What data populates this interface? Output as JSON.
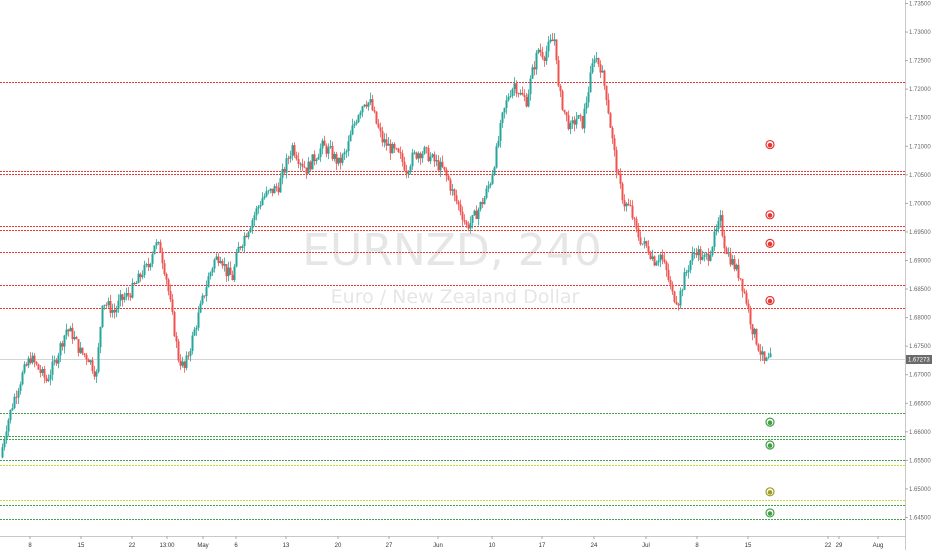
{
  "chart_data": {
    "type": "candlestick",
    "symbol": "EURNZD, 240",
    "description": "Euro / New Zealand Dollar",
    "price_axis": {
      "range": [
        1.6435,
        1.7355
      ],
      "ticks": [
        "1.73500",
        "1.73000",
        "1.72500",
        "1.72000",
        "1.71500",
        "1.71000",
        "1.70500",
        "1.70000",
        "1.69500",
        "1.69000",
        "1.68500",
        "1.68000",
        "1.67500",
        "1.67000",
        "1.66500",
        "1.66000",
        "1.65500",
        "1.65000",
        "1.64500"
      ],
      "current_price": 1.67273,
      "current_price_label": "1.67273"
    },
    "time_axis": {
      "ticks": [
        "8",
        "15",
        "22",
        "13:00",
        "May",
        "6",
        "13",
        "20",
        "27",
        "Jun",
        "10",
        "17",
        "24",
        "Jul",
        "8",
        "15",
        "22",
        "29",
        "Aug"
      ]
    },
    "levels": [
      {
        "price": 1.7212,
        "color": "#e53935"
      },
      {
        "price": 1.7056,
        "color": "#e53935"
      },
      {
        "price": 1.7051,
        "color": "#e53935"
      },
      {
        "price": 1.696,
        "color": "#e53935"
      },
      {
        "price": 1.6953,
        "color": "#e53935"
      },
      {
        "price": 1.6915,
        "color": "#e53935"
      },
      {
        "price": 1.6857,
        "color": "#e53935"
      },
      {
        "price": 1.6817,
        "color": "#e53935"
      },
      {
        "price": 1.6633,
        "color": "#43a047"
      },
      {
        "price": 1.6593,
        "color": "#43a047"
      },
      {
        "price": 1.6587,
        "color": "#43a047"
      },
      {
        "price": 1.6551,
        "color": "#43a047"
      },
      {
        "price": 1.6542,
        "color": "#cddc39"
      },
      {
        "price": 1.648,
        "color": "#cddc39"
      },
      {
        "price": 1.6472,
        "color": "#43a047"
      },
      {
        "price": 1.6448,
        "color": "#43a047"
      }
    ],
    "markers": [
      {
        "price": 1.7103,
        "color": "#e53935"
      },
      {
        "price": 1.698,
        "color": "#e53935"
      },
      {
        "price": 1.693,
        "color": "#e53935"
      },
      {
        "price": 1.683,
        "color": "#e53935"
      },
      {
        "price": 1.6617,
        "color": "#43a047"
      },
      {
        "price": 1.6577,
        "color": "#43a047"
      },
      {
        "price": 1.6495,
        "color": "#9e9d24"
      },
      {
        "price": 1.6458,
        "color": "#43a047"
      }
    ],
    "path_anchors": [
      [
        0,
        1.6555
      ],
      [
        6,
        1.661
      ],
      [
        14,
        1.666
      ],
      [
        22,
        1.67
      ],
      [
        30,
        1.673
      ],
      [
        38,
        1.671
      ],
      [
        46,
        1.669
      ],
      [
        54,
        1.672
      ],
      [
        60,
        1.675
      ],
      [
        66,
        1.678
      ],
      [
        72,
        1.677
      ],
      [
        80,
        1.674
      ],
      [
        88,
        1.673
      ],
      [
        96,
        1.67
      ],
      [
        102,
        1.683
      ],
      [
        108,
        1.682
      ],
      [
        114,
        1.681
      ],
      [
        120,
        1.683
      ],
      [
        128,
        1.684
      ],
      [
        136,
        1.686
      ],
      [
        142,
        1.688
      ],
      [
        148,
        1.689
      ],
      [
        154,
        1.693
      ],
      [
        160,
        1.692
      ],
      [
        166,
        1.687
      ],
      [
        172,
        1.68
      ],
      [
        178,
        1.673
      ],
      [
        184,
        1.671
      ],
      [
        190,
        1.675
      ],
      [
        196,
        1.679
      ],
      [
        202,
        1.683
      ],
      [
        208,
        1.687
      ],
      [
        214,
        1.69
      ],
      [
        220,
        1.691
      ],
      [
        226,
        1.688
      ],
      [
        232,
        1.687
      ],
      [
        238,
        1.692
      ],
      [
        246,
        1.695
      ],
      [
        254,
        1.698
      ],
      [
        262,
        1.701
      ],
      [
        270,
        1.702
      ],
      [
        278,
        1.703
      ],
      [
        286,
        1.707
      ],
      [
        292,
        1.71
      ],
      [
        298,
        1.708
      ],
      [
        306,
        1.706
      ],
      [
        314,
        1.708
      ],
      [
        322,
        1.71
      ],
      [
        330,
        1.709
      ],
      [
        338,
        1.707
      ],
      [
        346,
        1.709
      ],
      [
        352,
        1.713
      ],
      [
        358,
        1.716
      ],
      [
        364,
        1.718
      ],
      [
        370,
        1.7175
      ],
      [
        376,
        1.714
      ],
      [
        382,
        1.711
      ],
      [
        388,
        1.71
      ],
      [
        394,
        1.709
      ],
      [
        400,
        1.708
      ],
      [
        406,
        1.706
      ],
      [
        412,
        1.708
      ],
      [
        418,
        1.709
      ],
      [
        424,
        1.709
      ],
      [
        430,
        1.708
      ],
      [
        436,
        1.707
      ],
      [
        442,
        1.706
      ],
      [
        448,
        1.704
      ],
      [
        454,
        1.701
      ],
      [
        460,
        1.699
      ],
      [
        466,
        1.696
      ],
      [
        472,
        1.697
      ],
      [
        478,
        1.699
      ],
      [
        484,
        1.701
      ],
      [
        490,
        1.704
      ],
      [
        496,
        1.709
      ],
      [
        502,
        1.715
      ],
      [
        508,
        1.719
      ],
      [
        514,
        1.721
      ],
      [
        520,
        1.719
      ],
      [
        526,
        1.718
      ],
      [
        532,
        1.723
      ],
      [
        538,
        1.727
      ],
      [
        544,
        1.726
      ],
      [
        550,
        1.728
      ],
      [
        555,
        1.729
      ],
      [
        558,
        1.72
      ],
      [
        564,
        1.716
      ],
      [
        570,
        1.713
      ],
      [
        576,
        1.715
      ],
      [
        582,
        1.714
      ],
      [
        588,
        1.72
      ],
      [
        594,
        1.726
      ],
      [
        600,
        1.724
      ],
      [
        606,
        1.719
      ],
      [
        612,
        1.711
      ],
      [
        618,
        1.704
      ],
      [
        624,
        1.7
      ],
      [
        630,
        1.699
      ],
      [
        636,
        1.695
      ],
      [
        642,
        1.693
      ],
      [
        648,
        1.692
      ],
      [
        654,
        1.69
      ],
      [
        660,
        1.691
      ],
      [
        666,
        1.688
      ],
      [
        672,
        1.684
      ],
      [
        678,
        1.683
      ],
      [
        684,
        1.687
      ],
      [
        690,
        1.69
      ],
      [
        696,
        1.692
      ],
      [
        702,
        1.69
      ],
      [
        708,
        1.691
      ],
      [
        714,
        1.694
      ],
      [
        720,
        1.697
      ],
      [
        724,
        1.693
      ],
      [
        728,
        1.691
      ],
      [
        734,
        1.689
      ],
      [
        740,
        1.687
      ],
      [
        746,
        1.683
      ],
      [
        752,
        1.678
      ],
      [
        758,
        1.675
      ],
      [
        764,
        1.672
      ],
      [
        770,
        1.6727
      ]
    ]
  }
}
